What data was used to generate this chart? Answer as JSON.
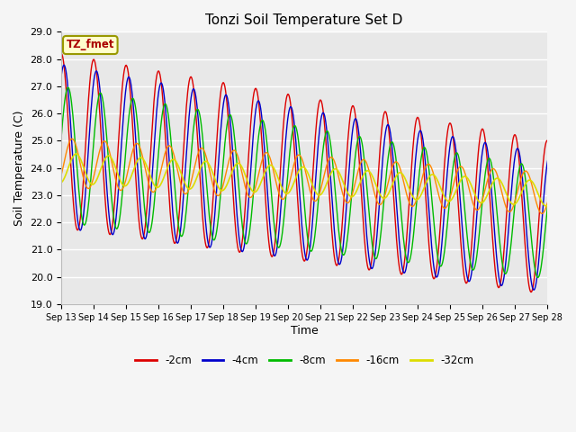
{
  "title": "Tonzi Soil Temperature Set D",
  "xlabel": "Time",
  "ylabel": "Soil Temperature (C)",
  "ylim": [
    19.0,
    29.0
  ],
  "yticks": [
    19.0,
    20.0,
    21.0,
    22.0,
    23.0,
    24.0,
    25.0,
    26.0,
    27.0,
    28.0,
    29.0
  ],
  "xtick_labels": [
    "Sep 13",
    "Sep 14",
    "Sep 15",
    "Sep 16",
    "Sep 17",
    "Sep 18",
    "Sep 19",
    "Sep 20",
    "Sep 21",
    "Sep 22",
    "Sep 23",
    "Sep 24",
    "Sep 25",
    "Sep 26",
    "Sep 27",
    "Sep 28"
  ],
  "series_colors": {
    "-2cm": "#dd0000",
    "-4cm": "#0000cc",
    "-8cm": "#00bb00",
    "-16cm": "#ff8800",
    "-32cm": "#dddd00"
  },
  "legend_label": "TZ_fmet",
  "legend_box_facecolor": "#ffffcc",
  "legend_box_edgecolor": "#999900",
  "bg_color": "#e8e8e8",
  "grid_color": "#ffffff",
  "fig_facecolor": "#f5f5f5"
}
